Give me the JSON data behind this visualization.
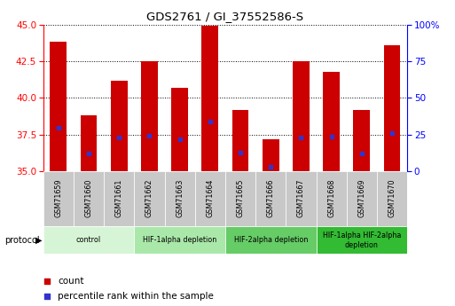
{
  "title": "GDS2761 / GI_37552586-S",
  "samples": [
    "GSM71659",
    "GSM71660",
    "GSM71661",
    "GSM71662",
    "GSM71663",
    "GSM71664",
    "GSM71665",
    "GSM71666",
    "GSM71667",
    "GSM71668",
    "GSM71669",
    "GSM71670"
  ],
  "bar_tops": [
    43.8,
    38.8,
    41.2,
    42.5,
    40.7,
    44.9,
    39.2,
    37.2,
    42.5,
    41.8,
    39.2,
    43.6
  ],
  "bar_bottom": 35.0,
  "percentile_values": [
    38.0,
    36.2,
    37.3,
    37.4,
    37.2,
    38.4,
    36.3,
    35.3,
    37.3,
    37.35,
    36.2,
    37.6
  ],
  "ylim": [
    35.0,
    45.0
  ],
  "yticks_left": [
    35,
    37.5,
    40,
    42.5,
    45
  ],
  "yticks_right": [
    0,
    25,
    50,
    75,
    100
  ],
  "bar_color": "#cc0000",
  "percentile_color": "#3333cc",
  "bar_width": 0.55,
  "groups": [
    {
      "label": "control",
      "start": 0,
      "end": 3,
      "color": "#d6f5d6"
    },
    {
      "label": "HIF-1alpha depletion",
      "start": 3,
      "end": 6,
      "color": "#aae8aa"
    },
    {
      "label": "HIF-2alpha depletion",
      "start": 6,
      "end": 9,
      "color": "#66cc66"
    },
    {
      "label": "HIF-1alpha HIF-2alpha\ndepletion",
      "start": 9,
      "end": 12,
      "color": "#33bb33"
    }
  ],
  "protocol_label": "protocol",
  "legend_count_label": "count",
  "legend_percentile_label": "percentile rank within the sample",
  "background_color": "#ffffff",
  "tick_label_bg": "#c8c8c8",
  "tick_border_color": "#999999"
}
